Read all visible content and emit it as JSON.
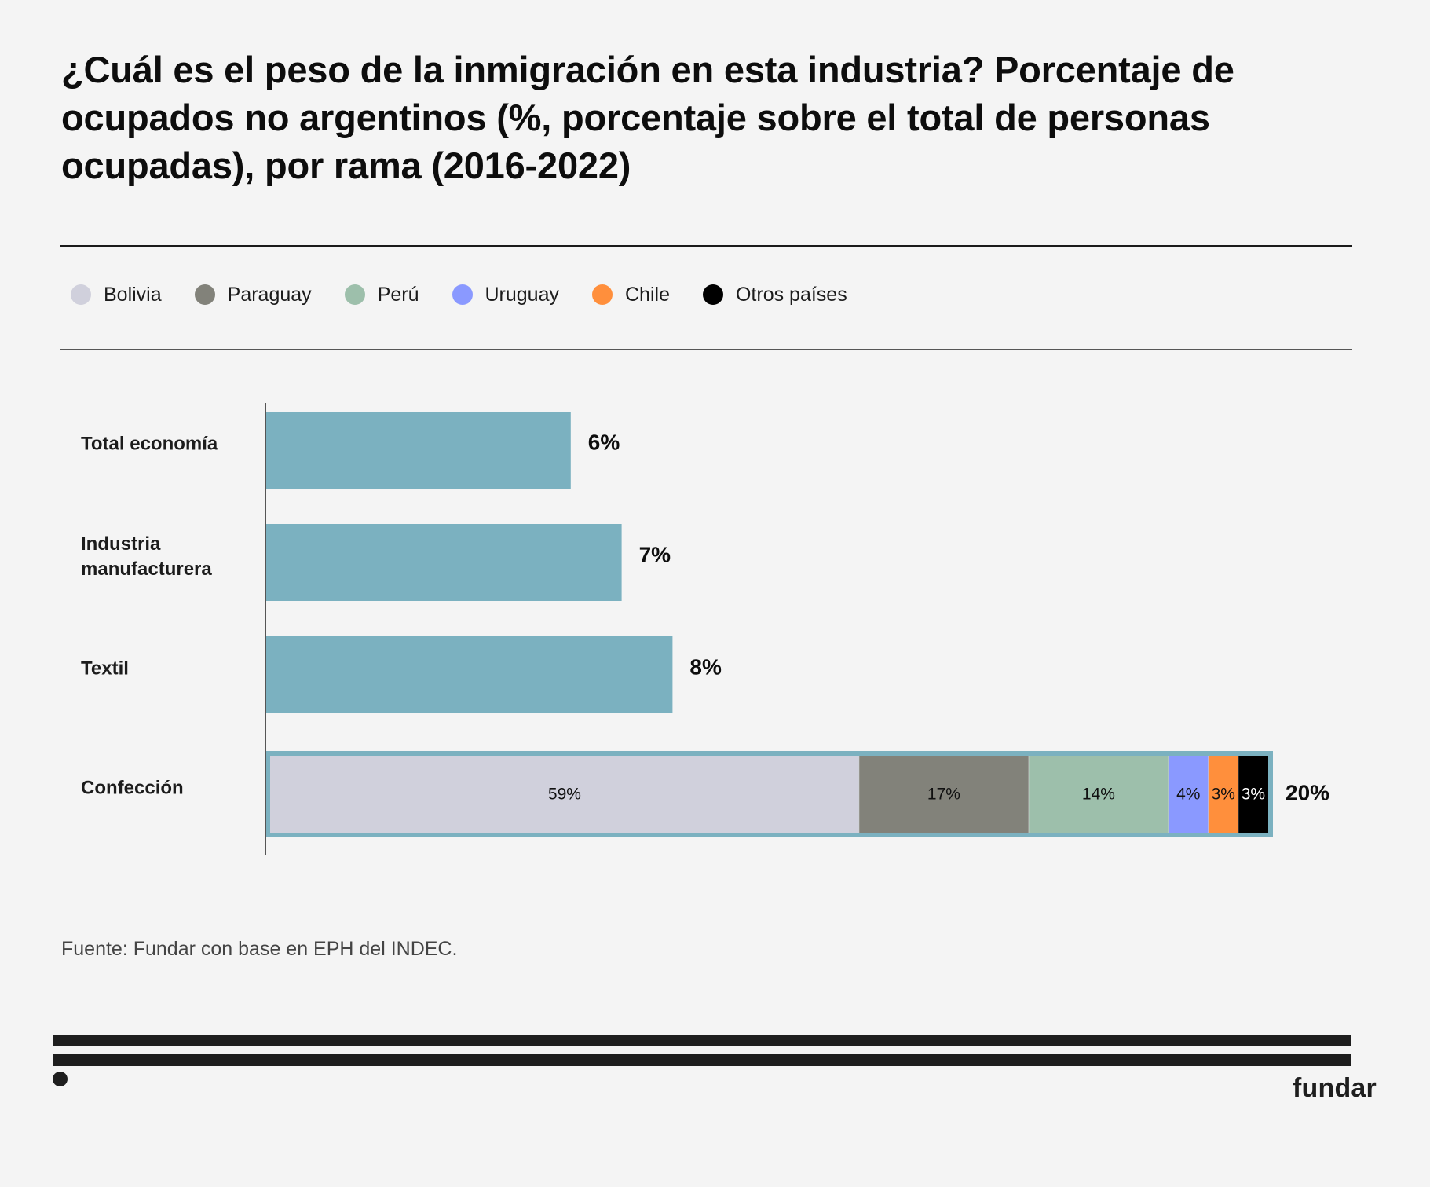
{
  "title": "¿Cuál es el peso de la inmigración en esta industria? Porcentaje de ocupados no argentinos (%, porcentaje sobre el total de personas ocupadas), por rama (2016-2022)",
  "legend": [
    {
      "label": "Bolivia",
      "color": "#d0d0dc"
    },
    {
      "label": "Paraguay",
      "color": "#82827a"
    },
    {
      "label": "Perú",
      "color": "#9dbfab"
    },
    {
      "label": "Uruguay",
      "color": "#8a99ff"
    },
    {
      "label": "Chile",
      "color": "#ff8f3c"
    },
    {
      "label": "Otros países",
      "color": "#000000"
    }
  ],
  "chart_data": {
    "type": "bar",
    "orientation": "horizontal",
    "title": "¿Cuál es el peso de la inmigración en esta industria? Porcentaje de ocupados no argentinos (%, porcentaje sobre el total de personas ocupadas), por rama (2016-2022)",
    "xlabel": "",
    "ylabel": "",
    "bar_color": "#7bb1c0",
    "categories": [
      "Total economía",
      "Industria manufacturera",
      "Textil",
      "Confección"
    ],
    "values": [
      6,
      7,
      8,
      20
    ],
    "value_labels": [
      "6%",
      "7%",
      "8%",
      "20%"
    ],
    "breakdown": {
      "category": "Confección",
      "unit": "% of non-Argentine workers",
      "series": [
        {
          "name": "Bolivia",
          "value": 59,
          "label": "59%",
          "color": "#d0d0dc",
          "text_color": "#111111"
        },
        {
          "name": "Paraguay",
          "value": 17,
          "label": "17%",
          "color": "#82827a",
          "text_color": "#111111"
        },
        {
          "name": "Perú",
          "value": 14,
          "label": "14%",
          "color": "#9dbfab",
          "text_color": "#111111"
        },
        {
          "name": "Uruguay",
          "value": 4,
          "label": "4%",
          "color": "#8a99ff",
          "text_color": "#111111"
        },
        {
          "name": "Chile",
          "value": 3,
          "label": "3%",
          "color": "#ff8f3c",
          "text_color": "#111111"
        },
        {
          "name": "Otros países",
          "value": 3,
          "label": "3%",
          "color": "#000000",
          "text_color": "#ffffff"
        }
      ]
    },
    "grid": false,
    "legend_position": "top-left"
  },
  "source": "Fuente: Fundar con base en EPH del INDEC.",
  "brand": "fundar"
}
